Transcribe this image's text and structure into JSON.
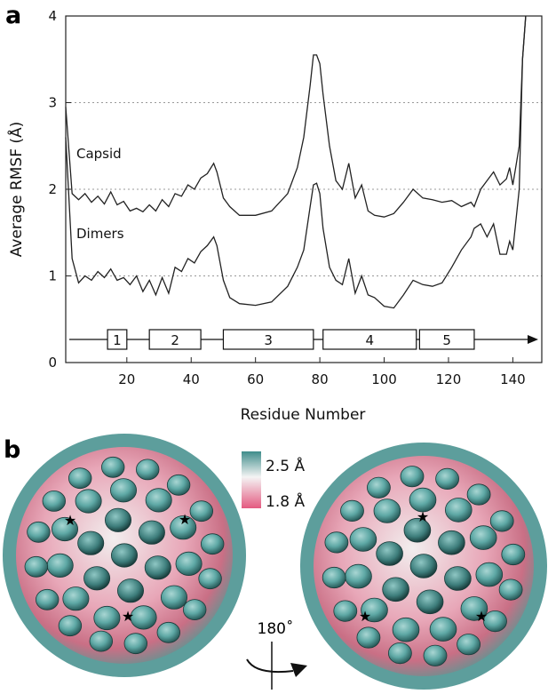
{
  "panels": {
    "a": "a",
    "b": "b"
  },
  "chart_data": {
    "type": "line",
    "title": "",
    "xlabel": "Residue Number",
    "ylabel": "Average RMSF (Å)",
    "xlim": [
      1,
      149
    ],
    "ylim": [
      0,
      4
    ],
    "xticks": [
      "20",
      "40",
      "60",
      "80",
      "100",
      "120",
      "140"
    ],
    "yticks": [
      "0",
      "1",
      "2",
      "3",
      "4"
    ],
    "grid_y": [
      1,
      2,
      3
    ],
    "series": [
      {
        "name": "Capsid",
        "x": [
          1,
          3,
          5,
          7,
          9,
          11,
          13,
          15,
          17,
          19,
          21,
          23,
          25,
          27,
          29,
          31,
          33,
          35,
          37,
          39,
          41,
          43,
          45,
          47,
          48,
          50,
          52,
          55,
          60,
          65,
          70,
          73,
          75,
          77,
          78,
          79,
          80,
          81,
          83,
          85,
          87,
          89,
          91,
          93,
          95,
          97,
          100,
          103,
          106,
          109,
          112,
          115,
          118,
          121,
          124,
          127,
          128,
          130,
          132,
          134,
          136,
          138,
          139,
          140,
          142,
          143,
          144
        ],
        "values": [
          2.95,
          1.95,
          1.88,
          1.95,
          1.85,
          1.92,
          1.83,
          1.97,
          1.82,
          1.86,
          1.75,
          1.78,
          1.74,
          1.82,
          1.75,
          1.88,
          1.8,
          1.95,
          1.92,
          2.05,
          2.0,
          2.13,
          2.18,
          2.3,
          2.2,
          1.9,
          1.8,
          1.7,
          1.7,
          1.75,
          1.95,
          2.25,
          2.6,
          3.2,
          3.55,
          3.55,
          3.45,
          3.1,
          2.5,
          2.1,
          2.0,
          2.3,
          1.9,
          2.05,
          1.75,
          1.7,
          1.68,
          1.72,
          1.85,
          2.0,
          1.9,
          1.88,
          1.85,
          1.87,
          1.8,
          1.85,
          1.8,
          2.0,
          2.1,
          2.2,
          2.05,
          2.12,
          2.25,
          2.05,
          2.5,
          3.5,
          4.0
        ]
      },
      {
        "name": "Dimers",
        "x": [
          1,
          3,
          5,
          7,
          9,
          11,
          13,
          15,
          17,
          19,
          21,
          23,
          25,
          27,
          29,
          31,
          33,
          35,
          37,
          39,
          41,
          43,
          45,
          47,
          48,
          50,
          52,
          55,
          60,
          65,
          70,
          73,
          75,
          77,
          78,
          79,
          80,
          81,
          83,
          85,
          87,
          89,
          91,
          93,
          95,
          97,
          100,
          103,
          106,
          109,
          112,
          115,
          118,
          121,
          124,
          127,
          128,
          130,
          132,
          134,
          136,
          138,
          139,
          140,
          142,
          143,
          144
        ],
        "values": [
          2.6,
          1.2,
          0.92,
          1.0,
          0.95,
          1.05,
          0.98,
          1.08,
          0.95,
          0.98,
          0.9,
          1.0,
          0.82,
          0.95,
          0.78,
          0.98,
          0.8,
          1.1,
          1.05,
          1.2,
          1.15,
          1.28,
          1.35,
          1.45,
          1.35,
          0.95,
          0.75,
          0.68,
          0.66,
          0.7,
          0.88,
          1.1,
          1.3,
          1.8,
          2.05,
          2.07,
          1.95,
          1.55,
          1.1,
          0.95,
          0.9,
          1.2,
          0.8,
          1.0,
          0.78,
          0.75,
          0.65,
          0.63,
          0.78,
          0.95,
          0.9,
          0.88,
          0.92,
          1.1,
          1.3,
          1.45,
          1.55,
          1.6,
          1.45,
          1.6,
          1.25,
          1.25,
          1.4,
          1.3,
          2.0,
          3.5,
          4.0
        ]
      }
    ],
    "secondary_structure": [
      {
        "label": "1",
        "start": 14,
        "end": 20
      },
      {
        "label": "2",
        "start": 27,
        "end": 43
      },
      {
        "label": "3",
        "start": 50,
        "end": 78
      },
      {
        "label": "4",
        "start": 81,
        "end": 110
      },
      {
        "label": "5",
        "start": 111,
        "end": 128
      }
    ]
  },
  "legend": {
    "high": "2.5 Å",
    "low": "1.8 Å"
  },
  "rotation": {
    "label": "180˚"
  },
  "colors": {
    "teal": "#4e9a98",
    "pink": "#e15b7e",
    "white": "#f2f2f2",
    "line": "#222222",
    "grid": "#888888"
  }
}
